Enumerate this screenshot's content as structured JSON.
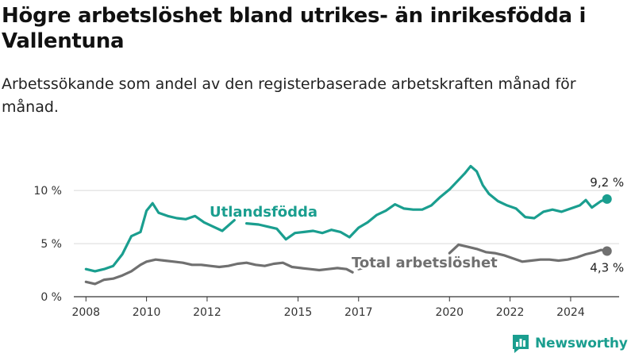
{
  "title": "Högre arbetslöshet bland utrikes- än inrikesfödda i Vallentuna",
  "subtitle": "Arbetssökande som andel av den registerbaserade arbetskraften månad för månad.",
  "brand": "Newsworthy",
  "chart_data": {
    "type": "line",
    "ylim": [
      0,
      13
    ],
    "xlim": [
      2007.6,
      2025.6
    ],
    "yticks": [
      {
        "value": 0,
        "label": "0 %"
      },
      {
        "value": 5,
        "label": "5 %"
      },
      {
        "value": 10,
        "label": "10 %"
      }
    ],
    "xticks": [
      {
        "value": 2008,
        "label": "2008"
      },
      {
        "value": 2010,
        "label": "2010"
      },
      {
        "value": 2012,
        "label": "2012"
      },
      {
        "value": 2015,
        "label": "2015"
      },
      {
        "value": 2017,
        "label": "2017"
      },
      {
        "value": 2020,
        "label": "2020"
      },
      {
        "value": 2022,
        "label": "2022"
      },
      {
        "value": 2024,
        "label": "2024"
      }
    ],
    "grid": true,
    "series": [
      {
        "name": "Utlandsfödda",
        "color": "#1a9e8f",
        "end_label": "9,2 %",
        "x": [
          2008.0,
          2008.3,
          2008.6,
          2008.9,
          2009.2,
          2009.5,
          2009.8,
          2010.0,
          2010.2,
          2010.4,
          2010.7,
          2011.0,
          2011.3,
          2011.6,
          2011.9,
          2012.2,
          2012.5,
          2012.9,
          null,
          2013.3,
          2013.7,
          2014.0,
          2014.3,
          2014.6,
          2014.9,
          2015.2,
          2015.5,
          2015.8,
          2016.1,
          2016.4,
          2016.7,
          2017.0,
          2017.3,
          2017.6,
          2017.9,
          2018.2,
          2018.5,
          2018.8,
          2019.1,
          2019.4,
          2019.7,
          2020.0,
          2020.3,
          2020.5,
          2020.7,
          2020.9,
          2021.1,
          2021.3,
          2021.6,
          2021.9,
          2022.2,
          2022.5,
          2022.8,
          2023.1,
          2023.4,
          2023.7,
          2024.0,
          2024.3,
          2024.5,
          2024.7,
          2025.0,
          2025.2
        ],
        "y": [
          2.6,
          2.4,
          2.6,
          2.9,
          4.0,
          5.7,
          6.1,
          8.1,
          8.8,
          7.9,
          7.6,
          7.4,
          7.3,
          7.6,
          7.0,
          6.6,
          6.2,
          7.2,
          null,
          6.9,
          6.8,
          6.6,
          6.4,
          5.4,
          6.0,
          6.1,
          6.2,
          6.0,
          6.3,
          6.1,
          5.6,
          6.5,
          7.0,
          7.7,
          8.1,
          8.7,
          8.3,
          8.2,
          8.2,
          8.6,
          9.4,
          10.1,
          11.0,
          11.6,
          12.3,
          11.8,
          10.5,
          9.7,
          9.0,
          8.6,
          8.3,
          7.5,
          7.4,
          8.0,
          8.2,
          8.0,
          8.3,
          8.6,
          9.1,
          8.4,
          9.0,
          9.2
        ]
      },
      {
        "name": "Total arbetslöshet",
        "color": "#707070",
        "end_label": "4,3 %",
        "x": [
          2008.0,
          2008.3,
          2008.6,
          2008.9,
          2009.2,
          2009.5,
          2009.8,
          2010.0,
          2010.3,
          2010.6,
          2010.9,
          2011.2,
          2011.5,
          2011.8,
          2012.1,
          2012.4,
          2012.7,
          2013.0,
          2013.3,
          2013.6,
          2013.9,
          2014.2,
          2014.5,
          2014.8,
          2015.1,
          2015.4,
          2015.7,
          2016.0,
          2016.3,
          2016.6,
          2016.8,
          null,
          2017.0,
          2017.3,
          null,
          2020.0,
          2020.3,
          2020.6,
          2020.9,
          2021.2,
          2021.5,
          2021.8,
          2022.1,
          2022.4,
          2022.7,
          2023.0,
          2023.3,
          2023.6,
          2023.9,
          2024.2,
          2024.5,
          2024.8,
          2025.0,
          2025.2
        ],
        "y": [
          1.4,
          1.2,
          1.6,
          1.7,
          2.0,
          2.4,
          3.0,
          3.3,
          3.5,
          3.4,
          3.3,
          3.2,
          3.0,
          3.0,
          2.9,
          2.8,
          2.9,
          3.1,
          3.2,
          3.0,
          2.9,
          3.1,
          3.2,
          2.8,
          2.7,
          2.6,
          2.5,
          2.6,
          2.7,
          2.6,
          2.3,
          null,
          2.6,
          2.8,
          null,
          4.1,
          4.9,
          4.7,
          4.5,
          4.2,
          4.1,
          3.9,
          3.6,
          3.3,
          3.4,
          3.5,
          3.5,
          3.4,
          3.5,
          3.7,
          4.0,
          4.2,
          4.4,
          4.3
        ]
      }
    ]
  }
}
